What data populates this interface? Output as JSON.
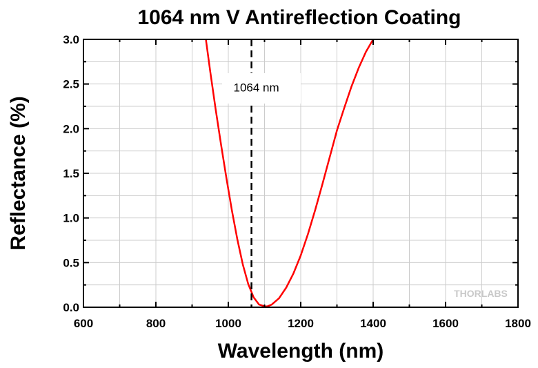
{
  "chart_data": {
    "type": "line",
    "title": "1064 nm V Antireflection Coating",
    "xlabel": "Wavelength (nm)",
    "ylabel": "Reflectance (%)",
    "xlim": [
      600,
      1800
    ],
    "ylim": [
      0,
      3.0
    ],
    "xticks": [
      600,
      800,
      1000,
      1200,
      1400,
      1600,
      1800
    ],
    "yticks": [
      0.0,
      0.5,
      1.0,
      1.5,
      2.0,
      2.5,
      3.0
    ],
    "ytick_labels": [
      "0.0",
      "0.5",
      "1.0",
      "1.5",
      "2.0",
      "2.5",
      "3.0"
    ],
    "grid": true,
    "series": [
      {
        "color": "#ff0000",
        "x": [
          938,
          950,
          965,
          980,
          995,
          1010,
          1025,
          1040,
          1055,
          1070,
          1085,
          1100,
          1108,
          1120,
          1140,
          1160,
          1180,
          1200,
          1220,
          1240,
          1260,
          1280,
          1300,
          1320,
          1340,
          1360,
          1380,
          1400
        ],
        "y": [
          3.0,
          2.64,
          2.22,
          1.82,
          1.44,
          1.08,
          0.76,
          0.48,
          0.26,
          0.11,
          0.03,
          0.01,
          0.01,
          0.03,
          0.1,
          0.22,
          0.38,
          0.58,
          0.82,
          1.09,
          1.38,
          1.68,
          1.98,
          2.23,
          2.47,
          2.68,
          2.86,
          3.0
        ]
      }
    ],
    "marker_line": {
      "x": 1064,
      "style": "dashed",
      "color": "#000000"
    },
    "annotation": {
      "text": "1064 nm",
      "x": 1064,
      "y": 2.5
    },
    "logo": "THORLABS"
  }
}
